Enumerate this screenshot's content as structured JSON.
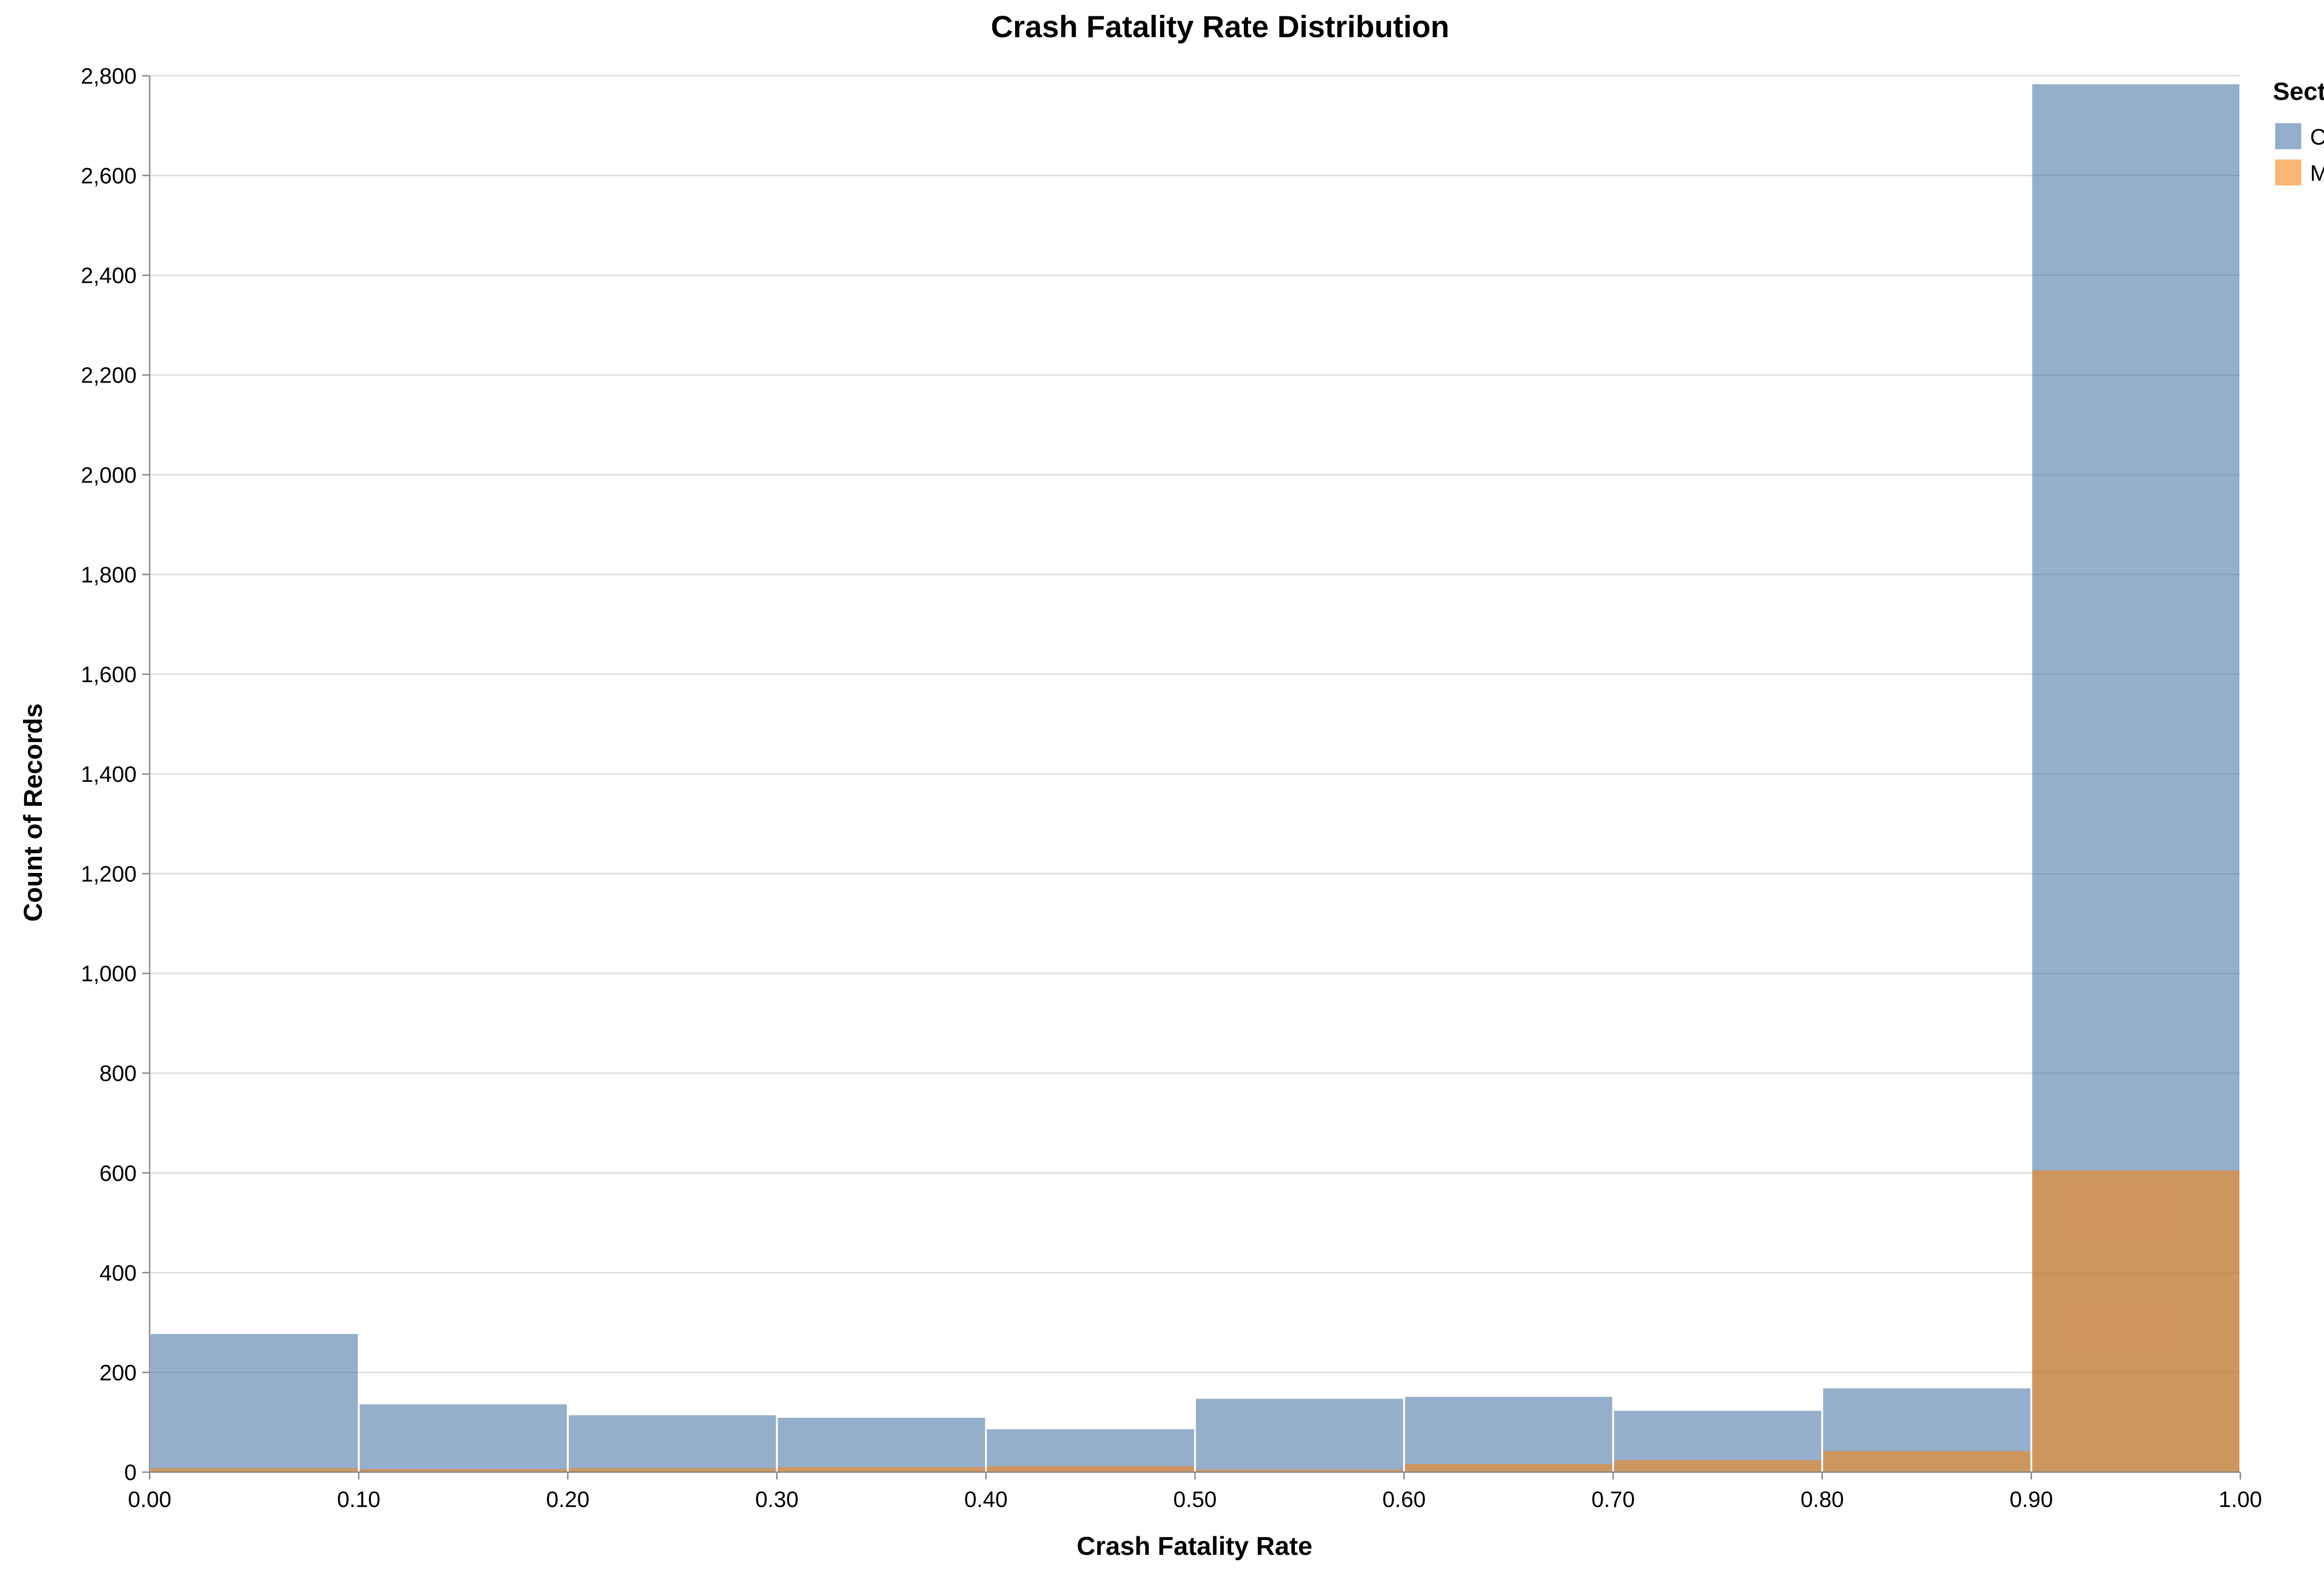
{
  "chart_data": {
    "type": "bar",
    "title": "Crash Fatality Rate Distribution",
    "xlabel": "Crash Fatality Rate",
    "ylabel": "Count of Records",
    "xlim": [
      0,
      1
    ],
    "ylim": [
      0,
      2800
    ],
    "x_ticks": [
      "0.00",
      "0.10",
      "0.20",
      "0.30",
      "0.40",
      "0.50",
      "0.60",
      "0.70",
      "0.80",
      "0.90",
      "1.00"
    ],
    "y_ticks": [
      "0",
      "200",
      "400",
      "600",
      "800",
      "1,000",
      "1,200",
      "1,400",
      "1,600",
      "1,800",
      "2,000",
      "2,200",
      "2,400",
      "2,600",
      "2,800"
    ],
    "bin_edges": [
      0.0,
      0.1,
      0.2,
      0.3,
      0.4,
      0.5,
      0.6,
      0.7,
      0.8,
      0.9,
      1.0
    ],
    "overlay": true,
    "grid": true,
    "legend": {
      "title": "Sector",
      "position": "right"
    },
    "series": [
      {
        "name": "Civilian",
        "color": "#4c78a8",
        "opacity": 0.6,
        "values": [
          277,
          136,
          114,
          109,
          86,
          147,
          151,
          123,
          168,
          2783
        ]
      },
      {
        "name": "Military",
        "color": "#f58518",
        "opacity": 0.6,
        "values": [
          8,
          6,
          8,
          10,
          12,
          5,
          16,
          24,
          42,
          605
        ]
      }
    ]
  }
}
